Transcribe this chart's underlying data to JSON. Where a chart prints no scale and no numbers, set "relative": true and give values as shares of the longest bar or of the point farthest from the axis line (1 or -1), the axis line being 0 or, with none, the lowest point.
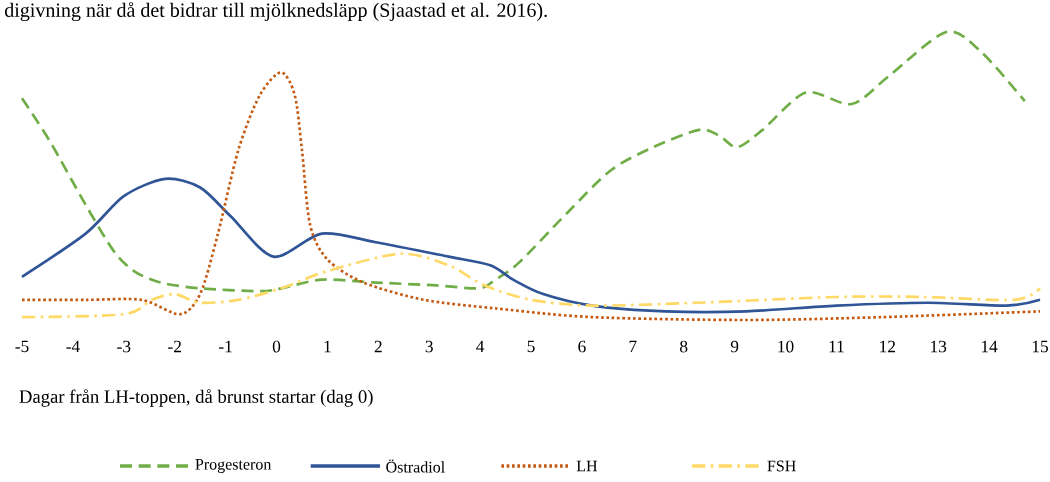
{
  "chart_data": {
    "type": "line",
    "relative": true,
    "annotations": [
      "digivning när då det bidrar till mjölknedsläpp (Sjaastad et al. 2016)."
    ],
    "xlabel": "Dagar från LH-toppen, då brunst startar (dag 0)",
    "xlim": [
      -5,
      15
    ],
    "xticks": [
      -5,
      -4,
      -3,
      -2,
      -1,
      0,
      1,
      2,
      3,
      4,
      5,
      6,
      7,
      8,
      9,
      10,
      11,
      12,
      13,
      14,
      15
    ],
    "legend": "bottom",
    "grid": false,
    "series": [
      {
        "name": "Progesteron",
        "color": "#70ad47",
        "line_style": "dashed",
        "x": [
          -5,
          -4.45,
          -3.75,
          -3.2,
          -2.8,
          -2.28,
          -1.5,
          -0.33,
          0.1,
          0.9,
          1.95,
          3.15,
          3.98,
          4.3,
          4.77,
          5.7,
          6.57,
          7.4,
          8.3,
          8.7,
          9.05,
          9.55,
          10.4,
          11.3,
          12.05,
          13.16,
          13.85,
          14.7
        ],
        "values": [
          0.77,
          0.62,
          0.4,
          0.24,
          0.17,
          0.13,
          0.11,
          0.1,
          0.11,
          0.14,
          0.13,
          0.12,
          0.11,
          0.14,
          0.2,
          0.37,
          0.52,
          0.6,
          0.66,
          0.64,
          0.6,
          0.66,
          0.79,
          0.75,
          0.85,
          1.0,
          0.93,
          0.76
        ]
      },
      {
        "name": "Östradiol",
        "color": "#2f5597",
        "line_style": "solid",
        "x": [
          -5,
          -3.75,
          -3.0,
          -2.19,
          -1.5,
          -0.9,
          -0.06,
          0.89,
          1.95,
          3.38,
          4.2,
          4.65,
          5.24,
          6.2,
          7.64,
          9.23,
          11.0,
          12.8,
          14.35,
          15
        ],
        "values": [
          0.15,
          0.3,
          0.43,
          0.49,
          0.46,
          0.36,
          0.22,
          0.3,
          0.27,
          0.22,
          0.19,
          0.14,
          0.09,
          0.05,
          0.03,
          0.03,
          0.05,
          0.06,
          0.05,
          0.07
        ]
      },
      {
        "name": "LH",
        "color": "#c55a11",
        "line_style": "dotted",
        "x": [
          -5,
          -3.75,
          -2.65,
          -1.9,
          -1.5,
          -1.15,
          -0.75,
          -0.33,
          0.09,
          0.36,
          0.5,
          0.66,
          1.0,
          1.71,
          2.9,
          4.32,
          6.2,
          9.23,
          11.9,
          15
        ],
        "values": [
          0.07,
          0.07,
          0.07,
          0.02,
          0.09,
          0.3,
          0.59,
          0.78,
          0.86,
          0.78,
          0.59,
          0.33,
          0.21,
          0.13,
          0.07,
          0.04,
          0.01,
          0.0,
          0.01,
          0.03
        ]
      },
      {
        "name": "FSH",
        "color": "#ffd966",
        "line_style": "dashdot",
        "x": [
          -5,
          -3.0,
          -2.45,
          -2.0,
          -1.5,
          -0.75,
          0.09,
          1.0,
          2.43,
          3.38,
          4.09,
          5.0,
          6.2,
          8.3,
          11.0,
          12.7,
          14.5,
          15
        ],
        "values": [
          0.01,
          0.02,
          0.07,
          0.09,
          0.06,
          0.07,
          0.11,
          0.17,
          0.23,
          0.19,
          0.12,
          0.07,
          0.05,
          0.06,
          0.08,
          0.08,
          0.07,
          0.11
        ]
      }
    ]
  }
}
